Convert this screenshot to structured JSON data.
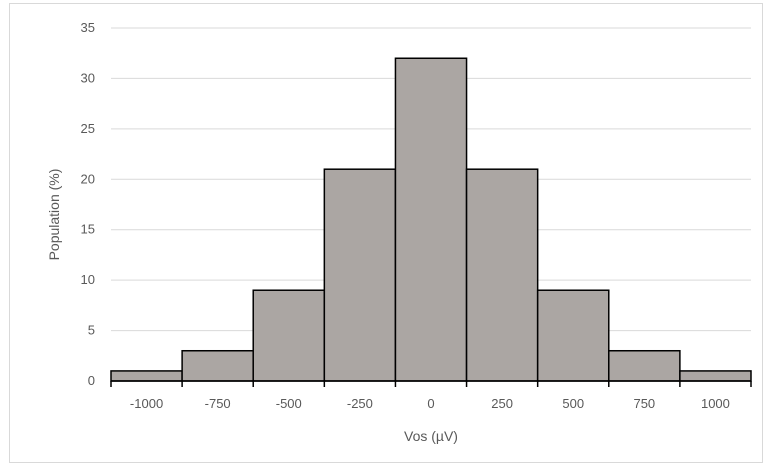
{
  "chart_data": {
    "type": "bar",
    "title": "",
    "xlabel": "Vos (µV)",
    "ylabel": "Population (%)",
    "categories": [
      "-1000",
      "-750",
      "-500",
      "-250",
      "0",
      "250",
      "500",
      "750",
      "1000"
    ],
    "values": [
      1,
      3,
      9,
      21,
      32,
      21,
      9,
      3,
      1
    ],
    "ylim": [
      0,
      35
    ],
    "yticks": [
      "0",
      "5",
      "10",
      "15",
      "20",
      "25",
      "30",
      "35"
    ],
    "grid": true,
    "legend": "none",
    "colors": {
      "bar_fill": "#aba6a3",
      "bar_stroke": "#000000",
      "grid": "#d9d9d9",
      "axis": "#000000"
    }
  }
}
